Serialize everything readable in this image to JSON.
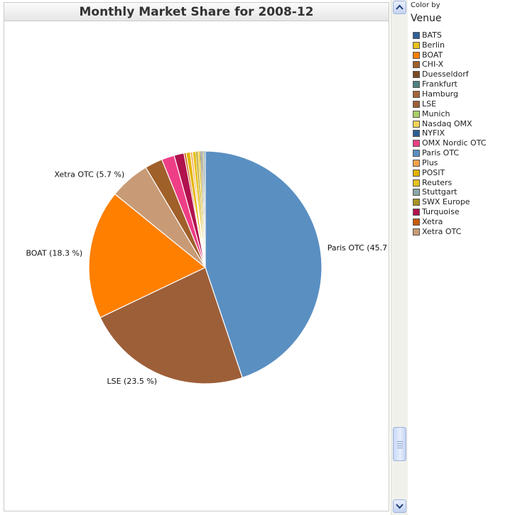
{
  "chart_data": {
    "type": "pie",
    "title": "Monthly Market Share for 2008-12",
    "legend_position": "right",
    "legend_header": "Color by",
    "legend_title": "Venue",
    "categories": [
      "BATS",
      "Berlin",
      "BOAT",
      "CHI-X",
      "Duesseldorf",
      "Frankfurt",
      "Hamburg",
      "LSE",
      "Munich",
      "Nasdaq OMX",
      "NYFIX",
      "OMX Nordic OTC",
      "Paris OTC",
      "Plus",
      "POSIT",
      "Reuters",
      "Stuttgart",
      "SWX Europe",
      "Turquoise",
      "Xetra",
      "Xetra OTC"
    ],
    "colors": [
      "#2f5f95",
      "#e8c11f",
      "#ff7f00",
      "#a0602a",
      "#7a4a22",
      "#4f8080",
      "#a5653a",
      "#9d5f38",
      "#a9cf6a",
      "#f2d45a",
      "#2d5f95",
      "#ee3f86",
      "#5a8fc2",
      "#f4a24a",
      "#e2b400",
      "#e6c21c",
      "#8aa6a6",
      "#a89320",
      "#b0124d",
      "#c85a0c",
      "#c89b76"
    ],
    "values": [
      0.1,
      0.2,
      18.3,
      2.5,
      0.1,
      0.1,
      0.1,
      23.5,
      0.1,
      0.2,
      0.1,
      1.8,
      45.7,
      0.3,
      0.6,
      0.5,
      0.1,
      0.2,
      1.4,
      0.3,
      5.7
    ],
    "slice_order": [
      "Paris OTC",
      "LSE",
      "BOAT",
      "Xetra OTC",
      "CHI-X",
      "OMX Nordic OTC",
      "Turquoise",
      "Xetra",
      "POSIT",
      "Plus",
      "Reuters",
      "SWX Europe",
      "Nasdaq OMX",
      "Berlin",
      "BATS",
      "Duesseldorf",
      "Frankfurt",
      "Hamburg",
      "Munich",
      "NYFIX",
      "Stuttgart"
    ],
    "labels": [
      {
        "venue": "Paris OTC",
        "text": "Paris OTC (45.7"
      },
      {
        "venue": "LSE",
        "text": "LSE (23.5 %)"
      },
      {
        "venue": "BOAT",
        "text": "BOAT (18.3 %)"
      },
      {
        "venue": "Xetra OTC",
        "text": "Xetra OTC (5.7 %)"
      }
    ]
  }
}
